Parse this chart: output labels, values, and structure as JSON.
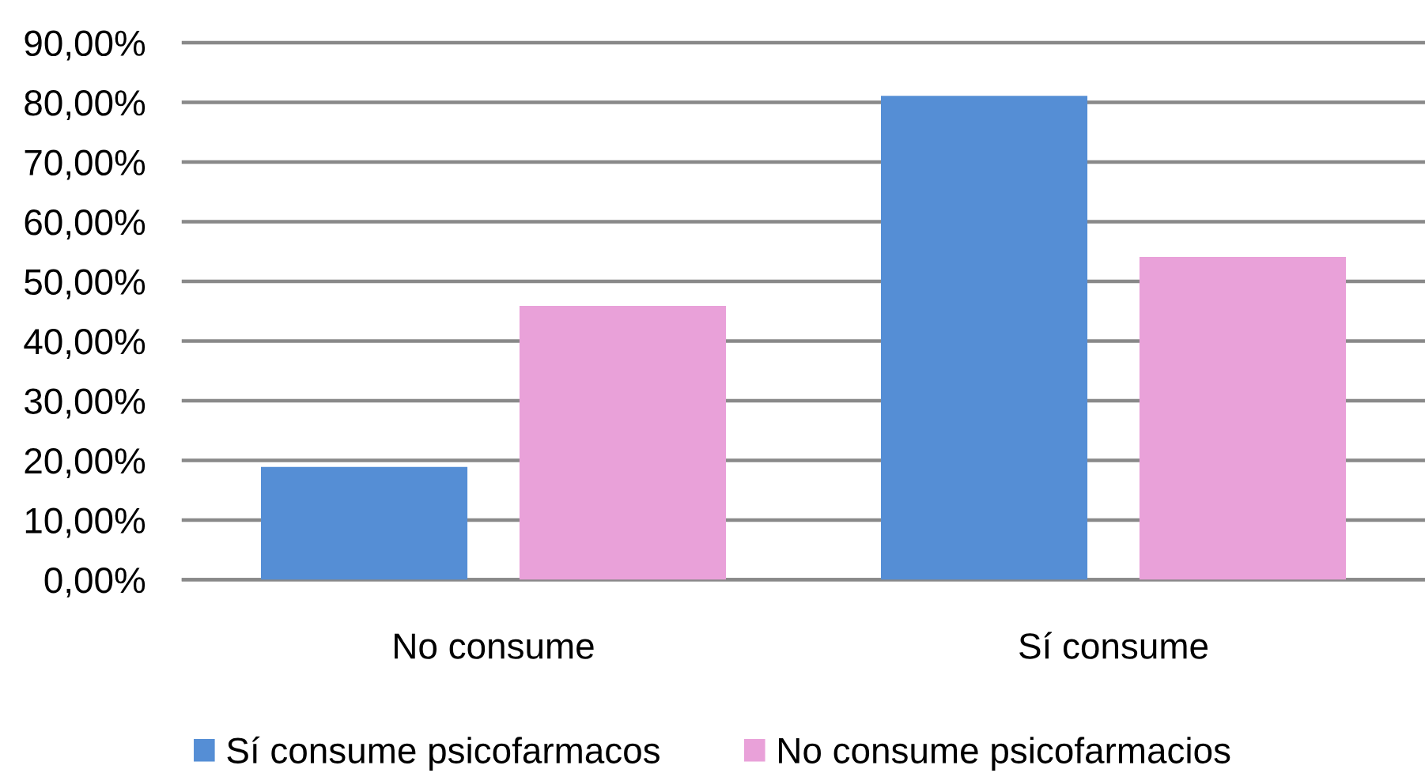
{
  "chart_data": {
    "type": "bar",
    "categories": [
      "No consume",
      "Sí consume"
    ],
    "series": [
      {
        "name": "Sí consume psicofarmacos",
        "color": "#558ed5",
        "values": [
          18.9,
          81.1
        ]
      },
      {
        "name": "No consume psicofarmacios",
        "color": "#e9a1d9",
        "values": [
          45.9,
          54.1
        ]
      }
    ],
    "ylim": [
      0,
      90
    ],
    "yticks": [
      {
        "value": 0,
        "label": "0,00%"
      },
      {
        "value": 10,
        "label": "10,00%"
      },
      {
        "value": 20,
        "label": "20,00%"
      },
      {
        "value": 30,
        "label": "30,00%"
      },
      {
        "value": 40,
        "label": "40,00%"
      },
      {
        "value": 50,
        "label": "50,00%"
      },
      {
        "value": 60,
        "label": "60,00%"
      },
      {
        "value": 70,
        "label": "70,00%"
      },
      {
        "value": 80,
        "label": "80,00%"
      },
      {
        "value": 90,
        "label": "90,00%"
      }
    ],
    "grid": "y",
    "legend": "bottom"
  }
}
